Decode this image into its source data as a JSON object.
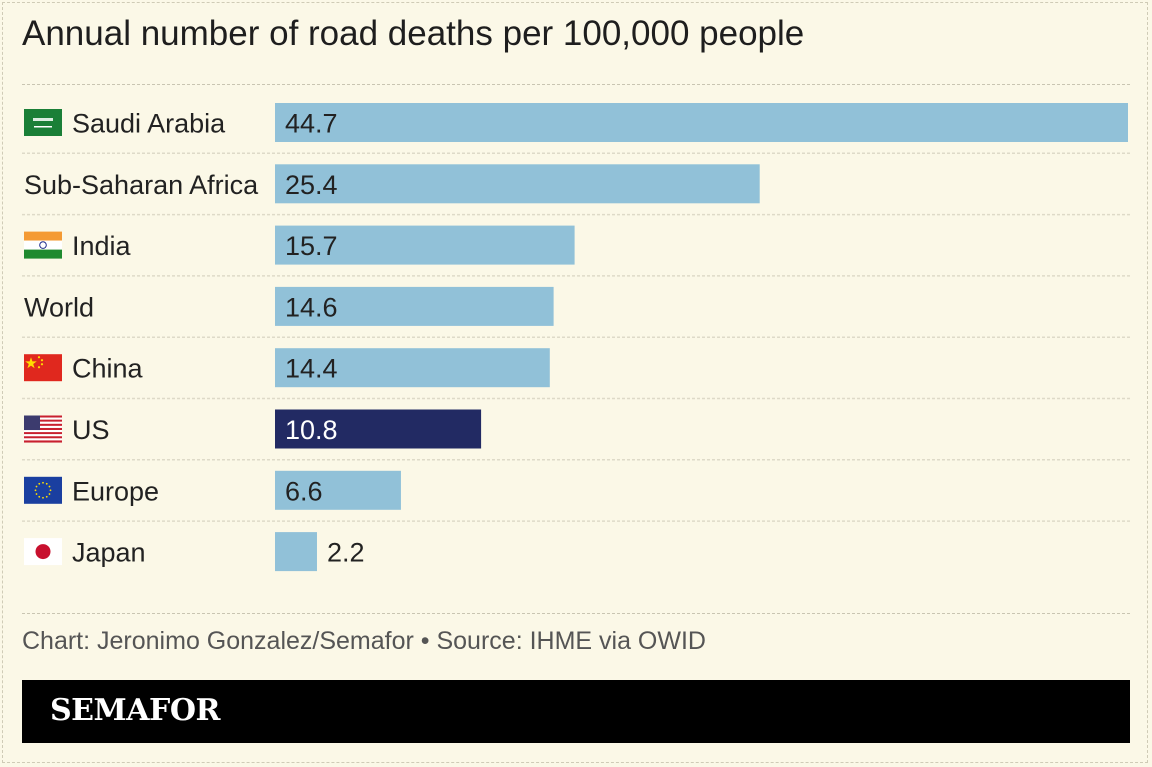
{
  "title": "Annual number of road deaths per 100,000 people",
  "chart_data": {
    "type": "bar",
    "orientation": "horizontal",
    "categories": [
      "Saudi Arabia",
      "Sub-Saharan Africa",
      "India",
      "World",
      "China",
      "US",
      "Europe",
      "Japan"
    ],
    "values": [
      44.7,
      25.4,
      15.7,
      14.6,
      14.4,
      10.8,
      6.6,
      2.2
    ],
    "value_labels": [
      "44.7",
      "25.4",
      "15.7",
      "14.6",
      "14.4",
      "10.8",
      "6.6",
      "2.2"
    ],
    "flags": [
      "saudi-arabia-flag",
      "",
      "india-flag",
      "",
      "china-flag",
      "us-flag",
      "eu-flag",
      "japan-flag"
    ],
    "highlight": "US",
    "colors": {
      "bar": "#91c1d8",
      "highlight": "#222a63",
      "label_on_bar": "#222222",
      "label_on_highlight": "#ffffff"
    },
    "xlim": [
      0,
      44.7
    ],
    "grid": false,
    "legend": "none"
  },
  "source": "Chart: Jeronimo Gonzalez/Semafor • Source: IHME via OWID",
  "brand": "SEMAFOR"
}
